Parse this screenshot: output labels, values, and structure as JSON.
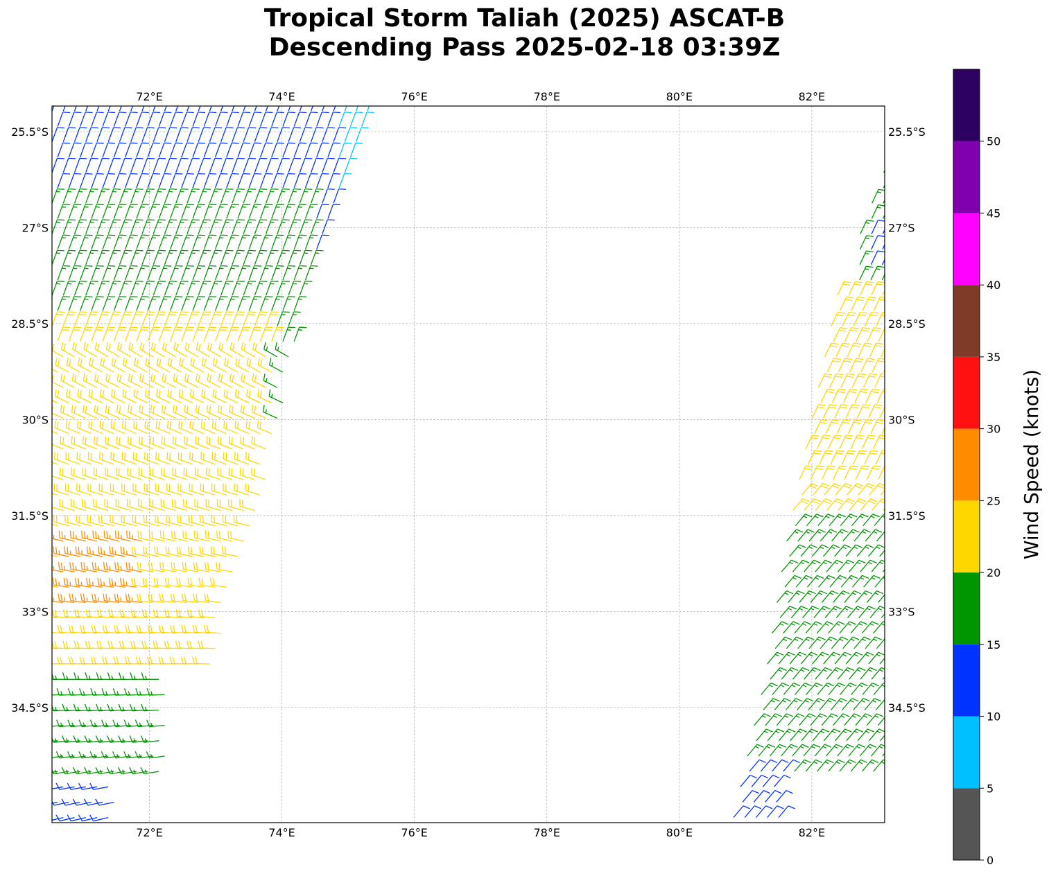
{
  "header": {
    "title_line1": "Tropical Storm Taliah (2025) ASCAT-B",
    "title_line2": "Descending Pass 2025-02-18 03:39Z"
  },
  "chart_data": {
    "type": "map-wind-barbs",
    "title": "Tropical Storm Taliah (2025) ASCAT-B Descending Pass 2025-02-18 03:39Z",
    "projection": "PlateCarree",
    "lon_range": [
      70.53,
      83.1
    ],
    "lat_range": [
      -36.3,
      -25.1
    ],
    "lon_ticks": [
      72,
      74,
      76,
      78,
      80,
      82
    ],
    "lon_tick_labels": [
      "72°E",
      "74°E",
      "76°E",
      "78°E",
      "80°E",
      "82°E"
    ],
    "lat_ticks": [
      -25.5,
      -27,
      -28.5,
      -30,
      -31.5,
      -33,
      -34.5
    ],
    "lat_tick_labels": [
      "25.5°S",
      "27°S",
      "28.5°S",
      "30°S",
      "31.5°S",
      "33°S",
      "34.5°S"
    ],
    "grid": true,
    "colorbar": {
      "label": "Wind Speed (knots)",
      "tick_values": [
        0,
        5,
        10,
        15,
        20,
        25,
        30,
        35,
        40,
        45,
        50
      ],
      "tick_labels": [
        "0",
        "5",
        "10",
        "15",
        "20",
        "25",
        "30",
        "35",
        "40",
        "45",
        "50"
      ],
      "bins": [
        {
          "min": 0,
          "max": 5,
          "color": "#555555"
        },
        {
          "min": 5,
          "max": 10,
          "color": "#00bfff"
        },
        {
          "min": 10,
          "max": 15,
          "color": "#0033ff"
        },
        {
          "min": 15,
          "max": 20,
          "color": "#009600"
        },
        {
          "min": 20,
          "max": 25,
          "color": "#ffd700"
        },
        {
          "min": 25,
          "max": 30,
          "color": "#ff8c00"
        },
        {
          "min": 30,
          "max": 35,
          "color": "#ff1010"
        },
        {
          "min": 35,
          "max": 40,
          "color": "#803a28"
        },
        {
          "min": 40,
          "max": 45,
          "color": "#ff00ff"
        },
        {
          "min": 45,
          "max": 50,
          "color": "#8000b0"
        },
        {
          "min": 50,
          "max": 55,
          "color": "#2b0060"
        }
      ]
    },
    "swaths": [
      {
        "name": "west-swath",
        "lat_top": -25.1,
        "lat_bottom": -36.3,
        "west_edge_lon_top": 70.53,
        "west_edge_lon_bottom": 70.53,
        "east_edge_lon": [
          [
            -25.1,
            75.45
          ],
          [
            -26.8,
            74.85
          ],
          [
            -28.5,
            74.25
          ],
          [
            -30.5,
            73.9
          ],
          [
            -32.5,
            73.3
          ],
          [
            -34.5,
            72.85
          ],
          [
            -36.3,
            72.2
          ]
        ],
        "speed_zones": [
          {
            "lat_range": [
              -25.1,
              -26.5
            ],
            "lon_range": [
              74.0,
              75.5
            ],
            "speed_kt": 8
          },
          {
            "lat_range": [
              -25.1,
              -28.0
            ],
            "lon_range": [
              70.5,
              74.8
            ],
            "speed_kt": 12
          },
          {
            "lat_range": [
              -26.5,
              -31.0
            ],
            "lon_range": [
              70.5,
              74.5
            ],
            "speed_kt": 17
          },
          {
            "lat_range": [
              -28.5,
              -34.0
            ],
            "lon_range": [
              70.5,
              73.9
            ],
            "speed_kt": 22
          },
          {
            "lat_range": [
              -31.7,
              -33.0
            ],
            "lon_range": [
              70.7,
              71.9
            ],
            "speed_kt": 27
          },
          {
            "lat_range": [
              -34.0,
              -35.5
            ],
            "lon_range": [
              70.5,
              72.3
            ],
            "speed_kt": 17
          },
          {
            "lat_range": [
              -35.5,
              -36.3
            ],
            "lon_range": [
              70.5,
              71.5
            ],
            "speed_kt": 12
          }
        ]
      },
      {
        "name": "east-swath",
        "lat_top": -25.1,
        "lat_bottom": -36.3,
        "west_edge_lon": [
          [
            -26.1,
            83.1
          ],
          [
            -28.0,
            82.4
          ],
          [
            -30.0,
            82.0
          ],
          [
            -32.0,
            81.6
          ],
          [
            -34.0,
            81.3
          ],
          [
            -36.3,
            80.8
          ]
        ],
        "east_edge_lon": 83.1,
        "speed_zones": [
          {
            "lat_range": [
              -26.1,
              -28.0
            ],
            "lon_range": [
              82.6,
              83.1
            ],
            "speed_kt": 17
          },
          {
            "lat_range": [
              -27.0,
              -27.8
            ],
            "lon_range": [
              82.8,
              83.1
            ],
            "speed_kt": 12
          },
          {
            "lat_range": [
              -28.0,
              -33.5
            ],
            "lon_range": [
              81.3,
              83.1
            ],
            "speed_kt": 22
          },
          {
            "lat_range": [
              -31.5,
              -35.5
            ],
            "lon_range": [
              81.0,
              83.1
            ],
            "speed_kt": 17
          },
          {
            "lat_range": [
              -35.3,
              -36.3
            ],
            "lon_range": [
              80.8,
              81.6
            ],
            "speed_kt": 12
          }
        ]
      }
    ]
  }
}
